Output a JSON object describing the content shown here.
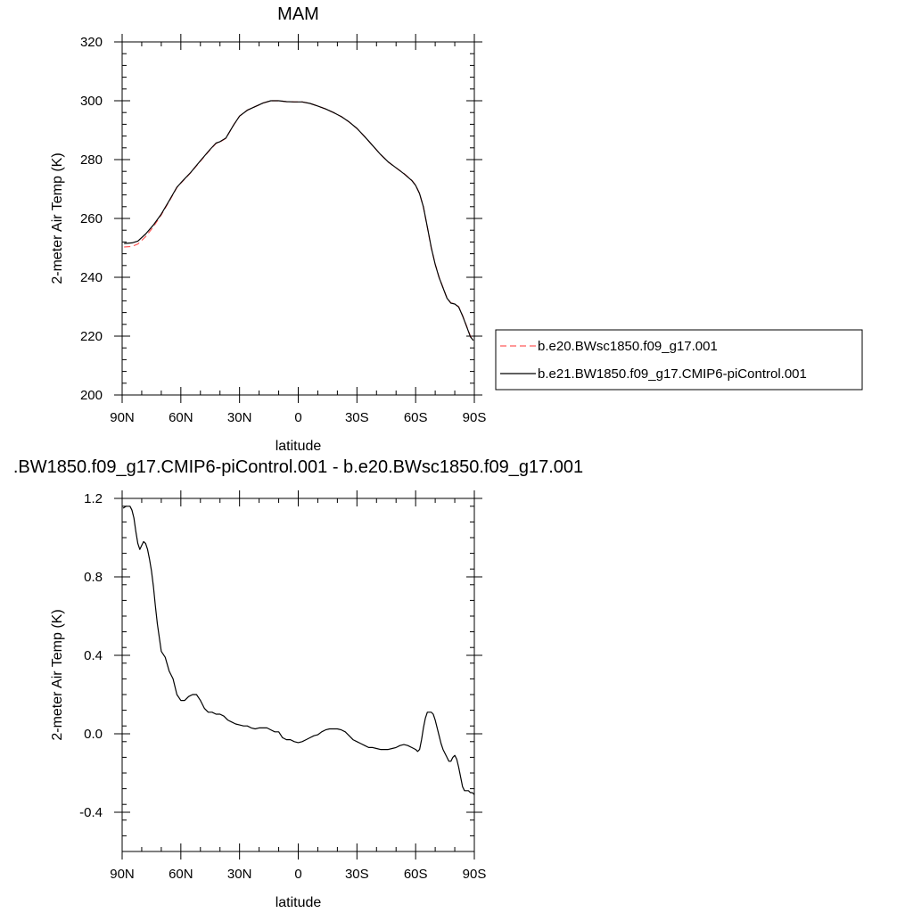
{
  "chart_data": [
    {
      "type": "line",
      "title": "MAM",
      "xlabel": "latitude",
      "ylabel": "2-meter Air Temp (K)",
      "xlim": [
        90,
        -90
      ],
      "ylim": [
        200,
        320
      ],
      "x_ticks": [
        90,
        60,
        30,
        0,
        -30,
        -60,
        -90
      ],
      "x_tick_labels": [
        "90N",
        "60N",
        "30N",
        "0",
        "30S",
        "60S",
        "90S"
      ],
      "y_ticks": [
        200,
        220,
        240,
        260,
        280,
        300,
        320
      ],
      "y_tick_labels": [
        "200",
        "220",
        "240",
        "260",
        "280",
        "300",
        "320"
      ],
      "legend_position": "outside-right",
      "series": [
        {
          "name": "b.e20.BWsc1850.f09_g17.001",
          "color": "#ff0000",
          "style": "dashed",
          "x": [
            89,
            85,
            82,
            78,
            74,
            70,
            66,
            62,
            60,
            55,
            50,
            45,
            42,
            40,
            37,
            33,
            30,
            26,
            22,
            18,
            14,
            10,
            6,
            2,
            -2,
            -6,
            -10,
            -14,
            -18,
            -22,
            -26,
            -30,
            -34,
            -38,
            -42,
            -46,
            -50,
            -54,
            -58,
            -60,
            -62,
            -64,
            -66,
            -68,
            -70,
            -72,
            -74,
            -76,
            -78,
            -80,
            -82,
            -84,
            -86,
            -88,
            -89.5
          ],
          "values": [
            250.3,
            250.5,
            251.3,
            253.8,
            257.2,
            261.2,
            265.8,
            270.5,
            272.0,
            275.5,
            279.5,
            283.4,
            285.5,
            286.0,
            287.2,
            291.8,
            294.8,
            296.8,
            298.0,
            299.2,
            300.0,
            300.0,
            299.7,
            299.6,
            299.6,
            299.1,
            298.2,
            297.2,
            296.0,
            294.6,
            292.8,
            290.6,
            287.8,
            284.8,
            281.8,
            279.2,
            277.2,
            275.3,
            273.0,
            271.3,
            268.5,
            263.8,
            257.0,
            250.0,
            244.5,
            240.0,
            236.5,
            233.0,
            231.3,
            231.0,
            230.0,
            227.0,
            223.5,
            220.0,
            218.8
          ]
        },
        {
          "name": "b.e21.BW1850.f09_g17.CMIP6-piControl.001",
          "color": "#000000",
          "style": "solid",
          "x": [
            89,
            85,
            82,
            78,
            74,
            70,
            66,
            62,
            60,
            55,
            50,
            45,
            42,
            40,
            37,
            33,
            30,
            26,
            22,
            18,
            14,
            10,
            6,
            2,
            -2,
            -6,
            -10,
            -14,
            -18,
            -22,
            -26,
            -30,
            -34,
            -38,
            -42,
            -46,
            -50,
            -54,
            -58,
            -60,
            -62,
            -64,
            -66,
            -68,
            -70,
            -72,
            -74,
            -76,
            -78,
            -80,
            -82,
            -84,
            -86,
            -88,
            -89.5
          ],
          "values": [
            251.5,
            251.7,
            252.3,
            254.7,
            257.8,
            261.5,
            266.0,
            270.6,
            272.1,
            275.6,
            279.6,
            283.5,
            285.6,
            286.1,
            287.3,
            291.8,
            294.8,
            296.8,
            298.0,
            299.2,
            300.0,
            300.0,
            299.7,
            299.6,
            299.6,
            299.1,
            298.2,
            297.2,
            296.0,
            294.6,
            292.8,
            290.6,
            287.8,
            284.8,
            281.8,
            279.2,
            277.2,
            275.2,
            272.9,
            271.2,
            268.4,
            263.9,
            257.1,
            250.1,
            244.4,
            239.9,
            236.4,
            232.9,
            231.2,
            230.9,
            229.9,
            226.9,
            223.4,
            219.8,
            218.5
          ]
        }
      ]
    },
    {
      "type": "line",
      "title": ".BW1850.f09_g17.CMIP6-piControl.001 - b.e20.BWsc1850.f09_g17.001",
      "xlabel": "latitude",
      "ylabel": "2-meter Air Temp (K)",
      "xlim": [
        90,
        -90
      ],
      "ylim": [
        -0.6,
        1.2
      ],
      "x_ticks": [
        90,
        60,
        30,
        0,
        -30,
        -60,
        -90
      ],
      "x_tick_labels": [
        "90N",
        "60N",
        "30N",
        "0",
        "30S",
        "60S",
        "90S"
      ],
      "y_ticks": [
        -0.4,
        0.0,
        0.4,
        0.8,
        1.2
      ],
      "y_tick_labels": [
        "-0.4",
        "0.0",
        "0.4",
        "0.8",
        "1.2"
      ],
      "series": [
        {
          "color": "#000000",
          "style": "solid",
          "x": [
            89.5,
            88,
            86,
            85,
            84,
            83,
            82,
            81,
            80,
            79,
            78,
            77,
            76,
            75,
            74,
            73,
            72,
            71,
            70,
            68,
            66,
            64,
            62,
            60,
            58,
            56,
            54,
            52,
            50,
            48,
            46,
            44,
            42,
            40,
            38,
            36,
            34,
            32,
            30,
            28,
            26,
            24,
            22,
            20,
            18,
            16,
            14,
            12,
            10,
            8,
            6,
            4,
            2,
            0,
            -2,
            -4,
            -6,
            -8,
            -10,
            -12,
            -14,
            -16,
            -18,
            -20,
            -22,
            -24,
            -26,
            -28,
            -30,
            -32,
            -34,
            -36,
            -38,
            -40,
            -42,
            -44,
            -46,
            -48,
            -50,
            -52,
            -54,
            -56,
            -58,
            -60,
            -61,
            -62,
            -63,
            -64,
            -65,
            -66,
            -67,
            -68,
            -69,
            -70,
            -71,
            -72,
            -73,
            -74,
            -75,
            -76,
            -77,
            -78,
            -79,
            -80,
            -81,
            -82,
            -83,
            -84,
            -85,
            -86,
            -87,
            -88,
            -89,
            -90
          ],
          "values": [
            1.15,
            1.16,
            1.16,
            1.14,
            1.1,
            1.03,
            0.97,
            0.94,
            0.96,
            0.98,
            0.97,
            0.94,
            0.89,
            0.83,
            0.75,
            0.65,
            0.56,
            0.49,
            0.42,
            0.39,
            0.32,
            0.28,
            0.2,
            0.17,
            0.17,
            0.19,
            0.2,
            0.2,
            0.17,
            0.13,
            0.11,
            0.11,
            0.1,
            0.1,
            0.09,
            0.07,
            0.06,
            0.05,
            0.045,
            0.04,
            0.04,
            0.03,
            0.025,
            0.03,
            0.03,
            0.03,
            0.02,
            0.01,
            0.01,
            -0.02,
            -0.03,
            -0.03,
            -0.04,
            -0.045,
            -0.04,
            -0.03,
            -0.02,
            -0.01,
            -0.005,
            0.01,
            0.02,
            0.025,
            0.025,
            0.025,
            0.02,
            0.01,
            -0.01,
            -0.03,
            -0.04,
            -0.05,
            -0.06,
            -0.07,
            -0.07,
            -0.075,
            -0.08,
            -0.08,
            -0.08,
            -0.075,
            -0.07,
            -0.06,
            -0.055,
            -0.06,
            -0.07,
            -0.08,
            -0.09,
            -0.08,
            -0.03,
            0.03,
            0.08,
            0.11,
            0.11,
            0.11,
            0.1,
            0.07,
            0.03,
            -0.01,
            -0.05,
            -0.08,
            -0.1,
            -0.12,
            -0.14,
            -0.14,
            -0.12,
            -0.11,
            -0.13,
            -0.17,
            -0.22,
            -0.27,
            -0.29,
            -0.29,
            -0.29,
            -0.3,
            -0.3,
            -0.31
          ]
        }
      ]
    }
  ]
}
